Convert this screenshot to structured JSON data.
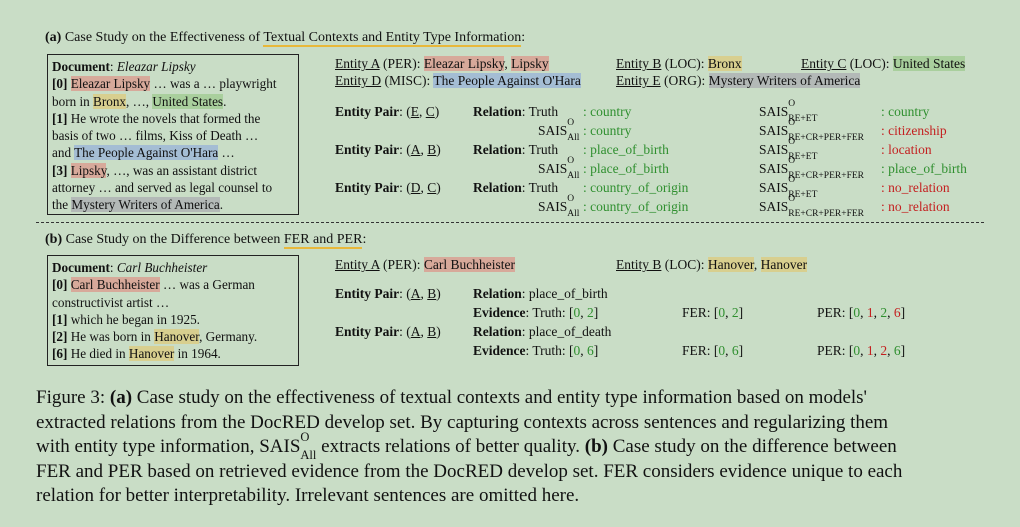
{
  "partA": {
    "label": "(a)",
    "title_prefix": "Case Study on the Effectiveness of",
    "title_highlight": "Textual Contexts and Entity Type Information",
    "title_suffix": ":",
    "doc_label": "Document",
    "doc_title": "Eleazar Lipsky",
    "doc": {
      "l1_idx": "[0]",
      "l1_e": "Eleazar Lipsky",
      "l1_t": " … was a … playwright",
      "l2_a": "born in ",
      "l2_e1": "Bronx",
      "l2_b": ", …, ",
      "l2_e2": "United States",
      "l2_c": ".",
      "l3_idx": "[1]",
      "l3_t": " He wrote the novels that formed the",
      "l4": "basis of two … films, Kiss of Death …",
      "l5_a": "and ",
      "l5_e": "The People Against O'Hara",
      "l5_b": " …",
      "l6_idx": "[3]",
      "l6_e": "Lipsky",
      "l6_t": ", …, was an assistant district",
      "l7": "attorney … and served as legal counsel to",
      "l8_a": "the ",
      "l8_e": "Mystery Writers of America",
      "l8_b": "."
    },
    "entities": {
      "a_lbl": "Entity A",
      "a_type": " (PER): ",
      "a_v1": "Eleazar Lipsky",
      "a_sep": ", ",
      "a_v2": "Lipsky",
      "b_lbl": "Entity B",
      "b_type": " (LOC): ",
      "b_v": "Bronx",
      "c_lbl": "Entity C",
      "c_type": " (LOC): ",
      "c_v": "United States",
      "d_lbl": "Entity D",
      "d_type": " (MISC): ",
      "d_v": "The People Against O'Hara",
      "e_lbl": "Entity E",
      "e_type": " (ORG): ",
      "e_v": "Mystery Writers of America"
    },
    "pair_label": "Entity Pair",
    "relation_label": "Relation",
    "truth_label": "Truth",
    "sais": "SAIS",
    "sup_o": "O",
    "sub_all": "All",
    "sub_re_et": "RE+ET",
    "sub_full": "RE+CR+PER+FER",
    "pairs": [
      {
        "p1": "E",
        "p2": "C",
        "truth": "country",
        "all": "country",
        "reet": "country",
        "full": "citizenship"
      },
      {
        "p1": "A",
        "p2": "B",
        "truth": "place_of_birth",
        "all": "place_of_birth",
        "reet": "location",
        "full": "place_of_birth"
      },
      {
        "p1": "D",
        "p2": "C",
        "truth": "country_of_origin",
        "all": "country_of_origin",
        "reet": "no_relation",
        "full": "no_relation"
      }
    ]
  },
  "partB": {
    "label": "(b)",
    "title_prefix": "Case Study on the Difference between",
    "title_highlight": "FER and PER",
    "title_suffix": ":",
    "doc_label": "Document",
    "doc_title": "Carl Buchheister",
    "doc": {
      "l1_idx": "[0]",
      "l1_e": "Carl Buchheister",
      "l1_t": " … was a German",
      "l2": "constructivist artist …",
      "l3_idx": "[1]",
      "l3_t": " which he began in 1925.",
      "l4_idx": "[2]",
      "l4_a": " He was born in ",
      "l4_e": "Hanover",
      "l4_b": ", Germany.",
      "l5_idx": "[6]",
      "l5_a": " He died in ",
      "l5_e": "Hanover",
      "l5_b": " in 1964."
    },
    "entities": {
      "a_lbl": "Entity A",
      "a_type": " (PER): ",
      "a_v": "Carl Buchheister",
      "b_lbl": "Entity B",
      "b_type": " (LOC): ",
      "b_v1": "Hanover",
      "b_sep": ", ",
      "b_v2": "Hanover"
    },
    "evidence_label": "Evidence",
    "truth_label": "Truth",
    "fer_label": "FER",
    "per_label": "PER",
    "rows": [
      {
        "p1": "A",
        "p2": "B",
        "relation": "place_of_birth",
        "truth_a": "0",
        "truth_b": "2",
        "fer_a": "0",
        "fer_b": "2",
        "per_0": "0",
        "per_1": "1",
        "per_2": "2",
        "per_6": "6"
      },
      {
        "p1": "A",
        "p2": "B",
        "relation": "place_of_death",
        "truth_a": "0",
        "truth_b": "6",
        "fer_a": "0",
        "fer_b": "6",
        "per_0": "0",
        "per_1": "1",
        "per_2": "2",
        "per_6": "6"
      }
    ]
  },
  "caption": {
    "fig": "Figure 3:",
    "a": "(a)",
    "t1": " Case study on the effectiveness of textual contexts and entity type information based on models'",
    "t2": "extracted relations from the DocRED develop set. By capturing contexts across sentences and regularizing them",
    "t3a": "with entity type information, ",
    "t3b": " extracts relations of better quality. ",
    "b": "(b)",
    "t3c": " Case study on the difference between",
    "t4": "FER and PER based on retrieved evidence from the DocRED develop set. FER considers evidence unique to each",
    "t5": "relation for better interpretability. Irrelevant sentences are omitted here."
  }
}
